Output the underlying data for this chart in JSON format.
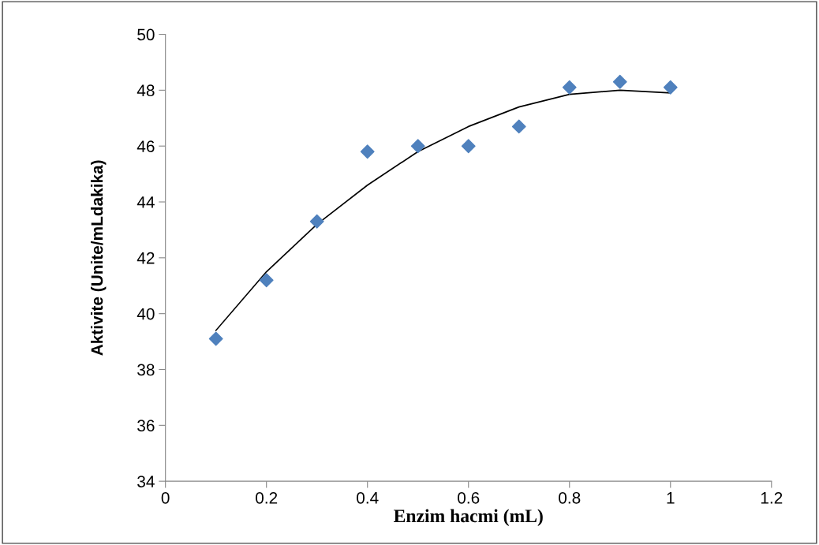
{
  "chart_data": {
    "type": "scatter",
    "xlabel": "Enzim hacmi (mL)",
    "ylabel": "Aktivite (Unite/mLdakika)",
    "x": [
      0.1,
      0.2,
      0.3,
      0.4,
      0.5,
      0.6,
      0.7,
      0.8,
      0.9,
      1.0
    ],
    "series": [
      {
        "type": "scatter",
        "color": "#4f81bd",
        "marker": "diamond",
        "values": [
          39.1,
          41.2,
          43.3,
          45.8,
          46.0,
          46.0,
          46.7,
          48.1,
          48.3,
          48.1
        ]
      },
      {
        "type": "line",
        "color": "#000000",
        "marker": "none",
        "line_style": "solid",
        "x": [
          0.1,
          0.2,
          0.3,
          0.4,
          0.5,
          0.6,
          0.7,
          0.8,
          0.9,
          1.0
        ],
        "values": [
          39.4,
          41.5,
          43.2,
          44.6,
          45.8,
          46.7,
          47.4,
          47.85,
          48.0,
          47.9
        ]
      }
    ],
    "xlim": [
      0,
      1.2
    ],
    "xticks": [
      0,
      0.2,
      0.4,
      0.6,
      0.8,
      1,
      1.2
    ],
    "ylim": [
      34,
      50
    ],
    "yticks": [
      34,
      36,
      38,
      40,
      42,
      44,
      46,
      48,
      50
    ],
    "grid": false,
    "legend": false
  }
}
